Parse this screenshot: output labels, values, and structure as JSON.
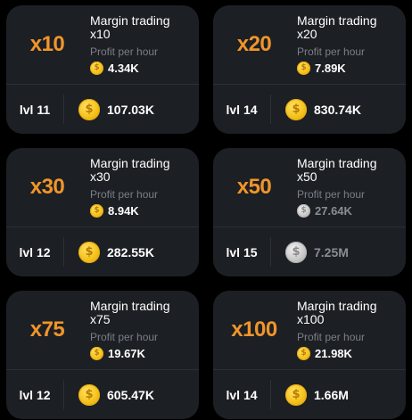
{
  "cards": [
    {
      "multiplier": "x10",
      "name": "Margin trading\nx10",
      "profit_label": "Profit per hour",
      "profit": "4.34K",
      "level": "lvl 11",
      "cost": "107.03K",
      "locked": false
    },
    {
      "multiplier": "x20",
      "name": "Margin trading\nx20",
      "profit_label": "Profit per hour",
      "profit": "7.89K",
      "level": "lvl 14",
      "cost": "830.74K",
      "locked": false
    },
    {
      "multiplier": "x30",
      "name": "Margin trading\nx30",
      "profit_label": "Profit per hour",
      "profit": "8.94K",
      "level": "lvl 12",
      "cost": "282.55K",
      "locked": false
    },
    {
      "multiplier": "x50",
      "name": "Margin trading\nx50",
      "profit_label": "Profit per hour",
      "profit": "27.64K",
      "level": "lvl 15",
      "cost": "7.25M",
      "locked": true
    },
    {
      "multiplier": "x75",
      "name": "Margin trading\nx75",
      "profit_label": "Profit per hour",
      "profit": "19.67K",
      "level": "lvl 12",
      "cost": "605.47K",
      "locked": false
    },
    {
      "multiplier": "x100",
      "name": "Margin trading\nx100",
      "profit_label": "Profit per hour",
      "profit": "21.98K",
      "level": "lvl 14",
      "cost": "1.66M",
      "locked": false
    }
  ],
  "coin_glyph": "$",
  "colors": {
    "background": "#000000",
    "card": "#1c1f24",
    "accent": "#f0952a",
    "muted": "#7b7f86",
    "coin_gold": "#f5c21a",
    "coin_silver": "#c9c9c9"
  },
  "icons": {
    "coin": "gold-coin-icon",
    "coin_locked": "silver-coin-icon"
  }
}
